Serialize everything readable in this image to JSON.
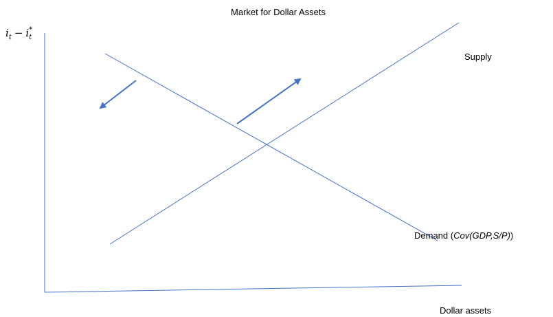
{
  "title": "Market for Dollar Assets",
  "y_axis_label": {
    "parts": [
      "i",
      "t",
      "−",
      "i",
      "t",
      "*"
    ]
  },
  "x_axis_label": "Dollar assets",
  "supply_label": "Supply",
  "demand_label": {
    "parts": [
      "Demand (",
      "Cov(GDP,S/P)",
      ")"
    ]
  }
}
